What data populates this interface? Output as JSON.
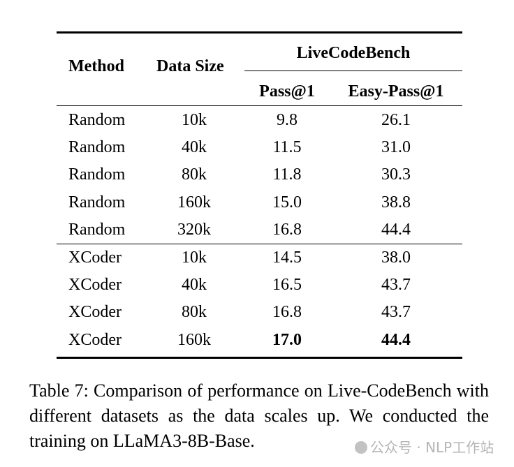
{
  "table": {
    "headers": {
      "method": "Method",
      "data_size": "Data Size",
      "group": "LiveCodeBench",
      "pass1": "Pass@1",
      "easy_pass1": "Easy-Pass@1"
    },
    "rows": [
      {
        "method": "Random",
        "data_size": "10k",
        "pass1": "9.8",
        "easy_pass1": "26.1"
      },
      {
        "method": "Random",
        "data_size": "40k",
        "pass1": "11.5",
        "easy_pass1": "31.0"
      },
      {
        "method": "Random",
        "data_size": "80k",
        "pass1": "11.8",
        "easy_pass1": "30.3"
      },
      {
        "method": "Random",
        "data_size": "160k",
        "pass1": "15.0",
        "easy_pass1": "38.8"
      },
      {
        "method": "Random",
        "data_size": "320k",
        "pass1": "16.8",
        "easy_pass1": "44.4"
      },
      {
        "method": "XCoder",
        "data_size": "10k",
        "pass1": "14.5",
        "easy_pass1": "38.0"
      },
      {
        "method": "XCoder",
        "data_size": "40k",
        "pass1": "16.5",
        "easy_pass1": "43.7"
      },
      {
        "method": "XCoder",
        "data_size": "80k",
        "pass1": "16.8",
        "easy_pass1": "43.7"
      },
      {
        "method": "XCoder",
        "data_size": "160k",
        "pass1": "17.0",
        "easy_pass1": "44.4",
        "bold": true
      }
    ]
  },
  "caption": {
    "text": "Table 7:  Comparison of performance on Live-CodeBench with different datasets as the data scales up. We conducted the training on LLaMA3-8B-Base."
  },
  "watermark": {
    "text": "公众号 · NLP工作站"
  }
}
